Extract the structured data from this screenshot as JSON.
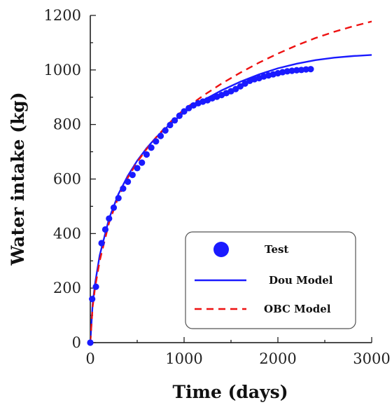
{
  "chart_data": {
    "type": "line",
    "xlabel": "Time (days)",
    "ylabel": "Water intake (kg)",
    "xlim": [
      0,
      3000
    ],
    "ylim": [
      0,
      1200
    ],
    "x_ticks": [
      "0",
      "1000",
      "2000",
      "3000"
    ],
    "y_ticks": [
      "0",
      "200",
      "400",
      "600",
      "800",
      "1000",
      "1200"
    ],
    "grid": false,
    "legend_position": "bottom-right",
    "series": [
      {
        "name": "Test",
        "style": "markers",
        "color": "#1a1aff",
        "points": [
          [
            0,
            0
          ],
          [
            20,
            160
          ],
          [
            60,
            205
          ],
          [
            120,
            365
          ],
          [
            160,
            415
          ],
          [
            200,
            455
          ],
          [
            250,
            495
          ],
          [
            300,
            530
          ],
          [
            350,
            565
          ],
          [
            400,
            590
          ],
          [
            450,
            615
          ],
          [
            500,
            640
          ],
          [
            550,
            660
          ],
          [
            600,
            690
          ],
          [
            650,
            715
          ],
          [
            700,
            738
          ],
          [
            750,
            758
          ],
          [
            800,
            778
          ],
          [
            850,
            798
          ],
          [
            900,
            815
          ],
          [
            950,
            832
          ],
          [
            1000,
            848
          ],
          [
            1050,
            860
          ],
          [
            1100,
            870
          ],
          [
            1150,
            878
          ],
          [
            1200,
            884
          ],
          [
            1250,
            889
          ],
          [
            1300,
            896
          ],
          [
            1350,
            902
          ],
          [
            1400,
            908
          ],
          [
            1450,
            915
          ],
          [
            1500,
            922
          ],
          [
            1550,
            930
          ],
          [
            1600,
            940
          ],
          [
            1650,
            950
          ],
          [
            1700,
            960
          ],
          [
            1750,
            966
          ],
          [
            1800,
            970
          ],
          [
            1850,
            976
          ],
          [
            1900,
            980
          ],
          [
            1950,
            984
          ],
          [
            2000,
            988
          ],
          [
            2050,
            992
          ],
          [
            2100,
            995
          ],
          [
            2150,
            997
          ],
          [
            2200,
            999
          ],
          [
            2250,
            1000
          ],
          [
            2300,
            1002
          ],
          [
            2350,
            1003
          ]
        ]
      },
      {
        "name": "Dou Model",
        "style": "solid",
        "color": "#1a1aff",
        "points": [
          [
            0,
            0
          ],
          [
            25,
            140
          ],
          [
            50,
            215
          ],
          [
            100,
            320
          ],
          [
            200,
            455
          ],
          [
            300,
            545
          ],
          [
            400,
            612
          ],
          [
            500,
            667
          ],
          [
            600,
            713
          ],
          [
            700,
            752
          ],
          [
            800,
            785
          ],
          [
            900,
            815
          ],
          [
            1000,
            845
          ],
          [
            1200,
            888
          ],
          [
            1400,
            925
          ],
          [
            1600,
            957
          ],
          [
            1800,
            984
          ],
          [
            2000,
            1006
          ],
          [
            2200,
            1023
          ],
          [
            2400,
            1036
          ],
          [
            2600,
            1045
          ],
          [
            2800,
            1051
          ],
          [
            3000,
            1055
          ]
        ]
      },
      {
        "name": "OBC Model",
        "style": "dashed",
        "color": "#ee1111",
        "points": [
          [
            0,
            0
          ],
          [
            25,
            130
          ],
          [
            50,
            200
          ],
          [
            100,
            300
          ],
          [
            200,
            440
          ],
          [
            300,
            535
          ],
          [
            400,
            605
          ],
          [
            500,
            662
          ],
          [
            600,
            710
          ],
          [
            700,
            752
          ],
          [
            800,
            790
          ],
          [
            900,
            825
          ],
          [
            1000,
            855
          ],
          [
            1200,
            905
          ],
          [
            1400,
            950
          ],
          [
            1600,
            990
          ],
          [
            1800,
            1027
          ],
          [
            2000,
            1060
          ],
          [
            2200,
            1090
          ],
          [
            2400,
            1117
          ],
          [
            2600,
            1140
          ],
          [
            2800,
            1160
          ],
          [
            3000,
            1178
          ]
        ]
      }
    ]
  }
}
